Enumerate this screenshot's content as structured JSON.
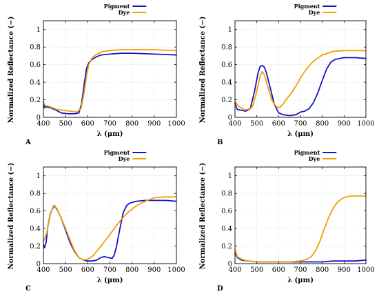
{
  "colors": {
    "pigment": "#1414c8",
    "dye": "#f0a000",
    "grid": "#d9d9d9",
    "axis": "#000000"
  },
  "chart_data": [
    {
      "panel": "A",
      "type": "line",
      "xlabel": "λ (μm)",
      "ylabel": "Normalized Reflectance (−)",
      "xlim": [
        400,
        1000
      ],
      "ylim": [
        0,
        1.1
      ],
      "xticks": [
        400,
        500,
        600,
        700,
        800,
        900,
        1000
      ],
      "yticks": [
        0,
        0.2,
        0.4,
        0.6,
        0.8,
        1
      ],
      "grid": true,
      "legend_position": "top-center",
      "series": [
        {
          "name": "Pigment",
          "color": "#1414c8",
          "x": [
            400,
            405,
            415,
            430,
            450,
            480,
            510,
            540,
            560,
            572,
            580,
            588,
            595,
            605,
            620,
            640,
            660,
            700,
            750,
            800,
            900,
            1000
          ],
          "y": [
            0.18,
            0.11,
            0.12,
            0.11,
            0.09,
            0.05,
            0.04,
            0.04,
            0.05,
            0.15,
            0.3,
            0.45,
            0.56,
            0.62,
            0.66,
            0.69,
            0.71,
            0.72,
            0.73,
            0.73,
            0.72,
            0.71
          ]
        },
        {
          "name": "Dye",
          "color": "#f0a000",
          "x": [
            400,
            410,
            420,
            440,
            460,
            490,
            520,
            550,
            570,
            585,
            595,
            605,
            620,
            640,
            670,
            700,
            750,
            800,
            900,
            1000
          ],
          "y": [
            0.17,
            0.13,
            0.13,
            0.11,
            0.09,
            0.08,
            0.07,
            0.06,
            0.1,
            0.3,
            0.48,
            0.6,
            0.68,
            0.72,
            0.75,
            0.76,
            0.77,
            0.77,
            0.77,
            0.76
          ]
        }
      ]
    },
    {
      "panel": "B",
      "type": "line",
      "xlabel": "λ (μm)",
      "ylabel": "Normalized Reflectance (−)",
      "xlim": [
        400,
        1000
      ],
      "ylim": [
        0,
        1.1
      ],
      "xticks": [
        400,
        500,
        600,
        700,
        800,
        900,
        1000
      ],
      "yticks": [
        0,
        0.2,
        0.4,
        0.6,
        0.8,
        1
      ],
      "grid": true,
      "legend_position": "top-center",
      "series": [
        {
          "name": "Pigment",
          "color": "#1414c8",
          "x": [
            400,
            410,
            430,
            450,
            470,
            490,
            505,
            515,
            525,
            535,
            545,
            560,
            580,
            600,
            620,
            650,
            680,
            700,
            720,
            740,
            760,
            780,
            800,
            820,
            840,
            860,
            880,
            900,
            950,
            1000
          ],
          "y": [
            0.16,
            0.09,
            0.08,
            0.07,
            0.1,
            0.3,
            0.5,
            0.58,
            0.59,
            0.57,
            0.5,
            0.35,
            0.15,
            0.05,
            0.03,
            0.02,
            0.03,
            0.06,
            0.07,
            0.1,
            0.17,
            0.28,
            0.42,
            0.55,
            0.63,
            0.66,
            0.67,
            0.68,
            0.68,
            0.67
          ]
        },
        {
          "name": "Dye",
          "color": "#f0a000",
          "x": [
            400,
            420,
            440,
            460,
            480,
            500,
            515,
            525,
            535,
            550,
            570,
            590,
            605,
            620,
            640,
            660,
            680,
            700,
            730,
            760,
            800,
            850,
            900,
            950,
            1000
          ],
          "y": [
            0.18,
            0.12,
            0.09,
            0.09,
            0.12,
            0.3,
            0.47,
            0.52,
            0.48,
            0.35,
            0.19,
            0.12,
            0.11,
            0.15,
            0.22,
            0.28,
            0.36,
            0.45,
            0.56,
            0.64,
            0.71,
            0.75,
            0.76,
            0.76,
            0.76
          ]
        }
      ]
    },
    {
      "panel": "C",
      "type": "line",
      "xlabel": "λ (μm)",
      "ylabel": "Normalized Reflectance (−)",
      "xlim": [
        400,
        1000
      ],
      "ylim": [
        0,
        1.1
      ],
      "xticks": [
        400,
        500,
        600,
        700,
        800,
        900,
        1000
      ],
      "yticks": [
        0,
        0.2,
        0.4,
        0.6,
        0.8,
        1
      ],
      "grid": true,
      "legend_position": "top-center",
      "series": [
        {
          "name": "Pigment",
          "color": "#1414c8",
          "x": [
            400,
            405,
            412,
            420,
            430,
            440,
            450,
            465,
            480,
            500,
            520,
            540,
            560,
            580,
            600,
            620,
            640,
            660,
            675,
            690,
            710,
            720,
            730,
            745,
            760,
            775,
            790,
            820,
            860,
            900,
            950,
            1000
          ],
          "y": [
            0.22,
            0.18,
            0.24,
            0.42,
            0.56,
            0.62,
            0.66,
            0.6,
            0.52,
            0.38,
            0.24,
            0.14,
            0.07,
            0.04,
            0.03,
            0.03,
            0.04,
            0.07,
            0.08,
            0.07,
            0.06,
            0.1,
            0.2,
            0.4,
            0.58,
            0.66,
            0.69,
            0.71,
            0.72,
            0.72,
            0.72,
            0.71
          ]
        },
        {
          "name": "Dye",
          "color": "#f0a000",
          "x": [
            400,
            415,
            430,
            445,
            460,
            480,
            500,
            520,
            540,
            560,
            580,
            600,
            620,
            640,
            660,
            690,
            720,
            750,
            780,
            820,
            860,
            900,
            950,
            1000
          ],
          "y": [
            0.25,
            0.35,
            0.55,
            0.66,
            0.63,
            0.52,
            0.4,
            0.27,
            0.15,
            0.07,
            0.04,
            0.05,
            0.08,
            0.14,
            0.2,
            0.3,
            0.4,
            0.5,
            0.58,
            0.66,
            0.71,
            0.75,
            0.76,
            0.76
          ]
        }
      ]
    },
    {
      "panel": "D",
      "type": "line",
      "xlabel": "λ (μm)",
      "ylabel": "Normalized Reflectance (−)",
      "xlim": [
        400,
        1000
      ],
      "ylim": [
        0,
        1.1
      ],
      "xticks": [
        400,
        500,
        600,
        700,
        800,
        900,
        1000
      ],
      "yticks": [
        0,
        0.2,
        0.4,
        0.6,
        0.8,
        1
      ],
      "grid": true,
      "legend_position": "top-center",
      "series": [
        {
          "name": "Pigment",
          "color": "#1414c8",
          "x": [
            400,
            410,
            430,
            460,
            500,
            550,
            600,
            650,
            700,
            750,
            800,
            850,
            900,
            950,
            1000
          ],
          "y": [
            0.12,
            0.07,
            0.04,
            0.03,
            0.02,
            0.02,
            0.02,
            0.02,
            0.02,
            0.02,
            0.02,
            0.03,
            0.03,
            0.03,
            0.04
          ]
        },
        {
          "name": "Dye",
          "color": "#f0a000",
          "x": [
            400,
            410,
            430,
            460,
            500,
            550,
            600,
            650,
            700,
            730,
            750,
            770,
            790,
            810,
            830,
            850,
            870,
            890,
            910,
            930,
            960,
            1000
          ],
          "y": [
            0.16,
            0.08,
            0.05,
            0.03,
            0.02,
            0.02,
            0.02,
            0.02,
            0.03,
            0.05,
            0.08,
            0.15,
            0.26,
            0.4,
            0.53,
            0.63,
            0.7,
            0.74,
            0.76,
            0.77,
            0.77,
            0.77
          ]
        }
      ]
    }
  ]
}
